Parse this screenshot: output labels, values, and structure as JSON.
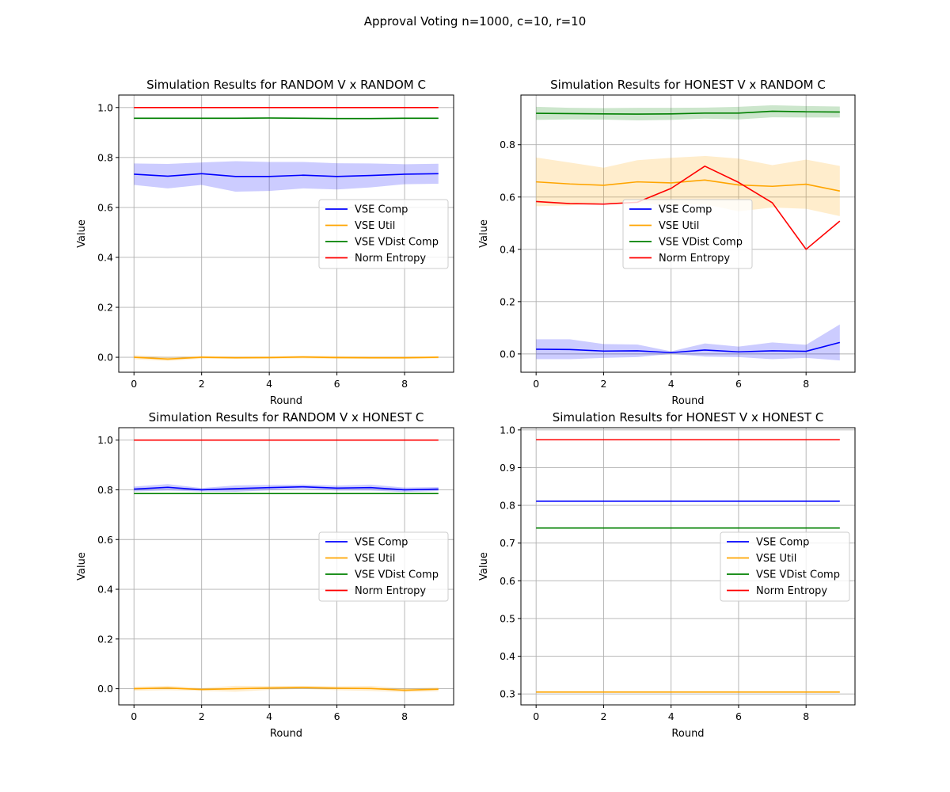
{
  "figure": {
    "suptitle": "Approval Voting n=1000, c=10, r=10"
  },
  "colors": {
    "VSE Comp": "#0000ff",
    "VSE Util": "#ffa500",
    "VSE VDist Comp": "#008000",
    "Norm Entropy": "#ff0000"
  },
  "chart_data": [
    {
      "type": "line",
      "title": "Simulation Results for RANDOM V x RANDOM C",
      "xlabel": "Round",
      "ylabel": "Value",
      "xlim": [
        -0.45,
        9.45
      ],
      "ylim": [
        -0.06,
        1.05
      ],
      "xticks": [
        0,
        2,
        4,
        6,
        8
      ],
      "yticks": [
        0.0,
        0.2,
        0.4,
        0.6,
        0.8,
        1.0
      ],
      "ytick_labels": [
        "0.0",
        "0.2",
        "0.4",
        "0.6",
        "0.8",
        "1.0"
      ],
      "grid": true,
      "legend_placement": "center-right",
      "x": [
        0,
        1,
        2,
        3,
        4,
        5,
        6,
        7,
        8,
        9
      ],
      "series": [
        {
          "name": "VSE Comp",
          "color": "#0000ff",
          "values": [
            0.733,
            0.725,
            0.735,
            0.724,
            0.724,
            0.729,
            0.724,
            0.728,
            0.733,
            0.735
          ],
          "lower": [
            0.69,
            0.676,
            0.69,
            0.663,
            0.666,
            0.676,
            0.672,
            0.68,
            0.693,
            0.695
          ],
          "upper": [
            0.776,
            0.774,
            0.78,
            0.785,
            0.782,
            0.782,
            0.777,
            0.776,
            0.773,
            0.775
          ]
        },
        {
          "name": "VSE Util",
          "color": "#ffa500",
          "values": [
            0.0,
            -0.007,
            0.0,
            -0.002,
            -0.001,
            0.001,
            -0.001,
            -0.002,
            -0.002,
            0.0
          ],
          "lower": [
            -0.008,
            -0.015,
            -0.006,
            -0.007,
            -0.006,
            -0.005,
            -0.007,
            -0.007,
            -0.007,
            -0.005
          ],
          "upper": [
            0.008,
            0.001,
            0.006,
            0.003,
            0.004,
            0.007,
            0.005,
            0.003,
            0.003,
            0.005
          ]
        },
        {
          "name": "VSE VDist Comp",
          "color": "#008000",
          "values": [
            0.957,
            0.957,
            0.957,
            0.957,
            0.958,
            0.957,
            0.956,
            0.956,
            0.957,
            0.957
          ],
          "lower": [
            0.954,
            0.954,
            0.954,
            0.954,
            0.955,
            0.954,
            0.953,
            0.953,
            0.954,
            0.954
          ],
          "upper": [
            0.96,
            0.96,
            0.96,
            0.96,
            0.961,
            0.96,
            0.959,
            0.959,
            0.96,
            0.96
          ]
        },
        {
          "name": "Norm Entropy",
          "color": "#ff0000",
          "values": [
            1.0,
            1.0,
            1.0,
            1.0,
            1.0,
            1.0,
            1.0,
            1.0,
            1.0,
            1.0
          ]
        }
      ]
    },
    {
      "type": "line",
      "title": "Simulation Results for HONEST V x RANDOM C",
      "xlabel": "Round",
      "ylabel": "Value",
      "xlim": [
        -0.45,
        9.45
      ],
      "ylim": [
        -0.07,
        0.99
      ],
      "xticks": [
        0,
        2,
        4,
        6,
        8
      ],
      "yticks": [
        0.0,
        0.2,
        0.4,
        0.6,
        0.8
      ],
      "ytick_labels": [
        "0.0",
        "0.2",
        "0.4",
        "0.6",
        "0.8"
      ],
      "grid": true,
      "legend_placement": "center",
      "x": [
        0,
        1,
        2,
        3,
        4,
        5,
        6,
        7,
        8,
        9
      ],
      "series": [
        {
          "name": "VSE Comp",
          "color": "#0000ff",
          "values": [
            0.018,
            0.017,
            0.011,
            0.012,
            0.005,
            0.015,
            0.008,
            0.012,
            0.01,
            0.044
          ],
          "lower": [
            -0.02,
            -0.02,
            -0.015,
            -0.012,
            0.0,
            -0.01,
            -0.012,
            -0.02,
            -0.015,
            -0.025
          ],
          "upper": [
            0.056,
            0.056,
            0.038,
            0.036,
            0.01,
            0.04,
            0.028,
            0.044,
            0.035,
            0.113
          ]
        },
        {
          "name": "VSE Util",
          "color": "#ffa500",
          "values": [
            0.658,
            0.65,
            0.645,
            0.658,
            0.654,
            0.665,
            0.646,
            0.641,
            0.649,
            0.623
          ],
          "lower": [
            0.565,
            0.568,
            0.578,
            0.575,
            0.57,
            0.573,
            0.545,
            0.56,
            0.555,
            0.527
          ],
          "upper": [
            0.751,
            0.732,
            0.712,
            0.741,
            0.75,
            0.757,
            0.747,
            0.722,
            0.743,
            0.719
          ]
        },
        {
          "name": "VSE VDist Comp",
          "color": "#008000",
          "values": [
            0.92,
            0.919,
            0.918,
            0.917,
            0.918,
            0.921,
            0.921,
            0.928,
            0.926,
            0.925
          ],
          "lower": [
            0.895,
            0.897,
            0.896,
            0.893,
            0.895,
            0.9,
            0.897,
            0.905,
            0.904,
            0.904
          ],
          "upper": [
            0.945,
            0.941,
            0.94,
            0.941,
            0.941,
            0.942,
            0.945,
            0.951,
            0.948,
            0.946
          ]
        },
        {
          "name": "Norm Entropy",
          "color": "#ff0000",
          "values": [
            0.583,
            0.575,
            0.573,
            0.58,
            0.633,
            0.718,
            0.656,
            0.578,
            0.4,
            0.508
          ]
        }
      ]
    },
    {
      "type": "line",
      "title": "Simulation Results for RANDOM V x HONEST C",
      "xlabel": "Round",
      "ylabel": "Value",
      "xlim": [
        -0.45,
        9.45
      ],
      "ylim": [
        -0.065,
        1.05
      ],
      "xticks": [
        0,
        2,
        4,
        6,
        8
      ],
      "yticks": [
        0.0,
        0.2,
        0.4,
        0.6,
        0.8,
        1.0
      ],
      "ytick_labels": [
        "0.0",
        "0.2",
        "0.4",
        "0.6",
        "0.8",
        "1.0"
      ],
      "grid": true,
      "legend_placement": "center-right",
      "x": [
        0,
        1,
        2,
        3,
        4,
        5,
        6,
        7,
        8,
        9
      ],
      "series": [
        {
          "name": "VSE Comp",
          "color": "#0000ff",
          "values": [
            0.803,
            0.81,
            0.8,
            0.805,
            0.809,
            0.812,
            0.807,
            0.809,
            0.8,
            0.803
          ],
          "lower": [
            0.793,
            0.797,
            0.793,
            0.792,
            0.798,
            0.803,
            0.797,
            0.797,
            0.791,
            0.795
          ],
          "upper": [
            0.813,
            0.823,
            0.807,
            0.818,
            0.82,
            0.821,
            0.817,
            0.821,
            0.809,
            0.811
          ]
        },
        {
          "name": "VSE Util",
          "color": "#ffa500",
          "values": [
            0.0,
            0.003,
            -0.003,
            0.0,
            0.003,
            0.005,
            0.002,
            0.001,
            -0.006,
            -0.002
          ],
          "lower": [
            -0.008,
            -0.006,
            -0.009,
            -0.012,
            -0.005,
            -0.001,
            -0.006,
            -0.009,
            -0.014,
            -0.01
          ],
          "upper": [
            0.008,
            0.012,
            0.003,
            0.012,
            0.011,
            0.011,
            0.01,
            0.011,
            0.002,
            0.006
          ]
        },
        {
          "name": "VSE VDist Comp",
          "color": "#008000",
          "values": [
            0.785,
            0.785,
            0.785,
            0.785,
            0.785,
            0.785,
            0.785,
            0.785,
            0.785,
            0.785
          ]
        },
        {
          "name": "Norm Entropy",
          "color": "#ff0000",
          "values": [
            1.0,
            1.0,
            1.0,
            1.0,
            1.0,
            1.0,
            1.0,
            1.0,
            1.0,
            1.0
          ]
        }
      ]
    },
    {
      "type": "line",
      "title": "Simulation Results for HONEST V x HONEST C",
      "xlabel": "Round",
      "ylabel": "Value",
      "xlim": [
        -0.45,
        9.45
      ],
      "ylim": [
        0.271,
        1.006
      ],
      "xticks": [
        0,
        2,
        4,
        6,
        8
      ],
      "yticks": [
        0.3,
        0.4,
        0.5,
        0.6,
        0.7,
        0.8,
        0.9,
        1.0
      ],
      "ytick_labels": [
        "0.3",
        "0.4",
        "0.5",
        "0.6",
        "0.7",
        "0.8",
        "0.9",
        "1.0"
      ],
      "grid": true,
      "legend_placement": "center-right",
      "x": [
        0,
        1,
        2,
        3,
        4,
        5,
        6,
        7,
        8,
        9
      ],
      "series": [
        {
          "name": "VSE Comp",
          "color": "#0000ff",
          "values": [
            0.811,
            0.811,
            0.811,
            0.811,
            0.811,
            0.811,
            0.811,
            0.811,
            0.811,
            0.811
          ]
        },
        {
          "name": "VSE Util",
          "color": "#ffa500",
          "values": [
            0.305,
            0.305,
            0.305,
            0.305,
            0.305,
            0.305,
            0.305,
            0.305,
            0.305,
            0.305
          ]
        },
        {
          "name": "VSE VDist Comp",
          "color": "#008000",
          "values": [
            0.74,
            0.74,
            0.74,
            0.74,
            0.74,
            0.74,
            0.74,
            0.74,
            0.74,
            0.74
          ]
        },
        {
          "name": "Norm Entropy",
          "color": "#ff0000",
          "values": [
            0.974,
            0.974,
            0.974,
            0.974,
            0.974,
            0.974,
            0.974,
            0.974,
            0.974,
            0.974
          ]
        }
      ]
    }
  ]
}
